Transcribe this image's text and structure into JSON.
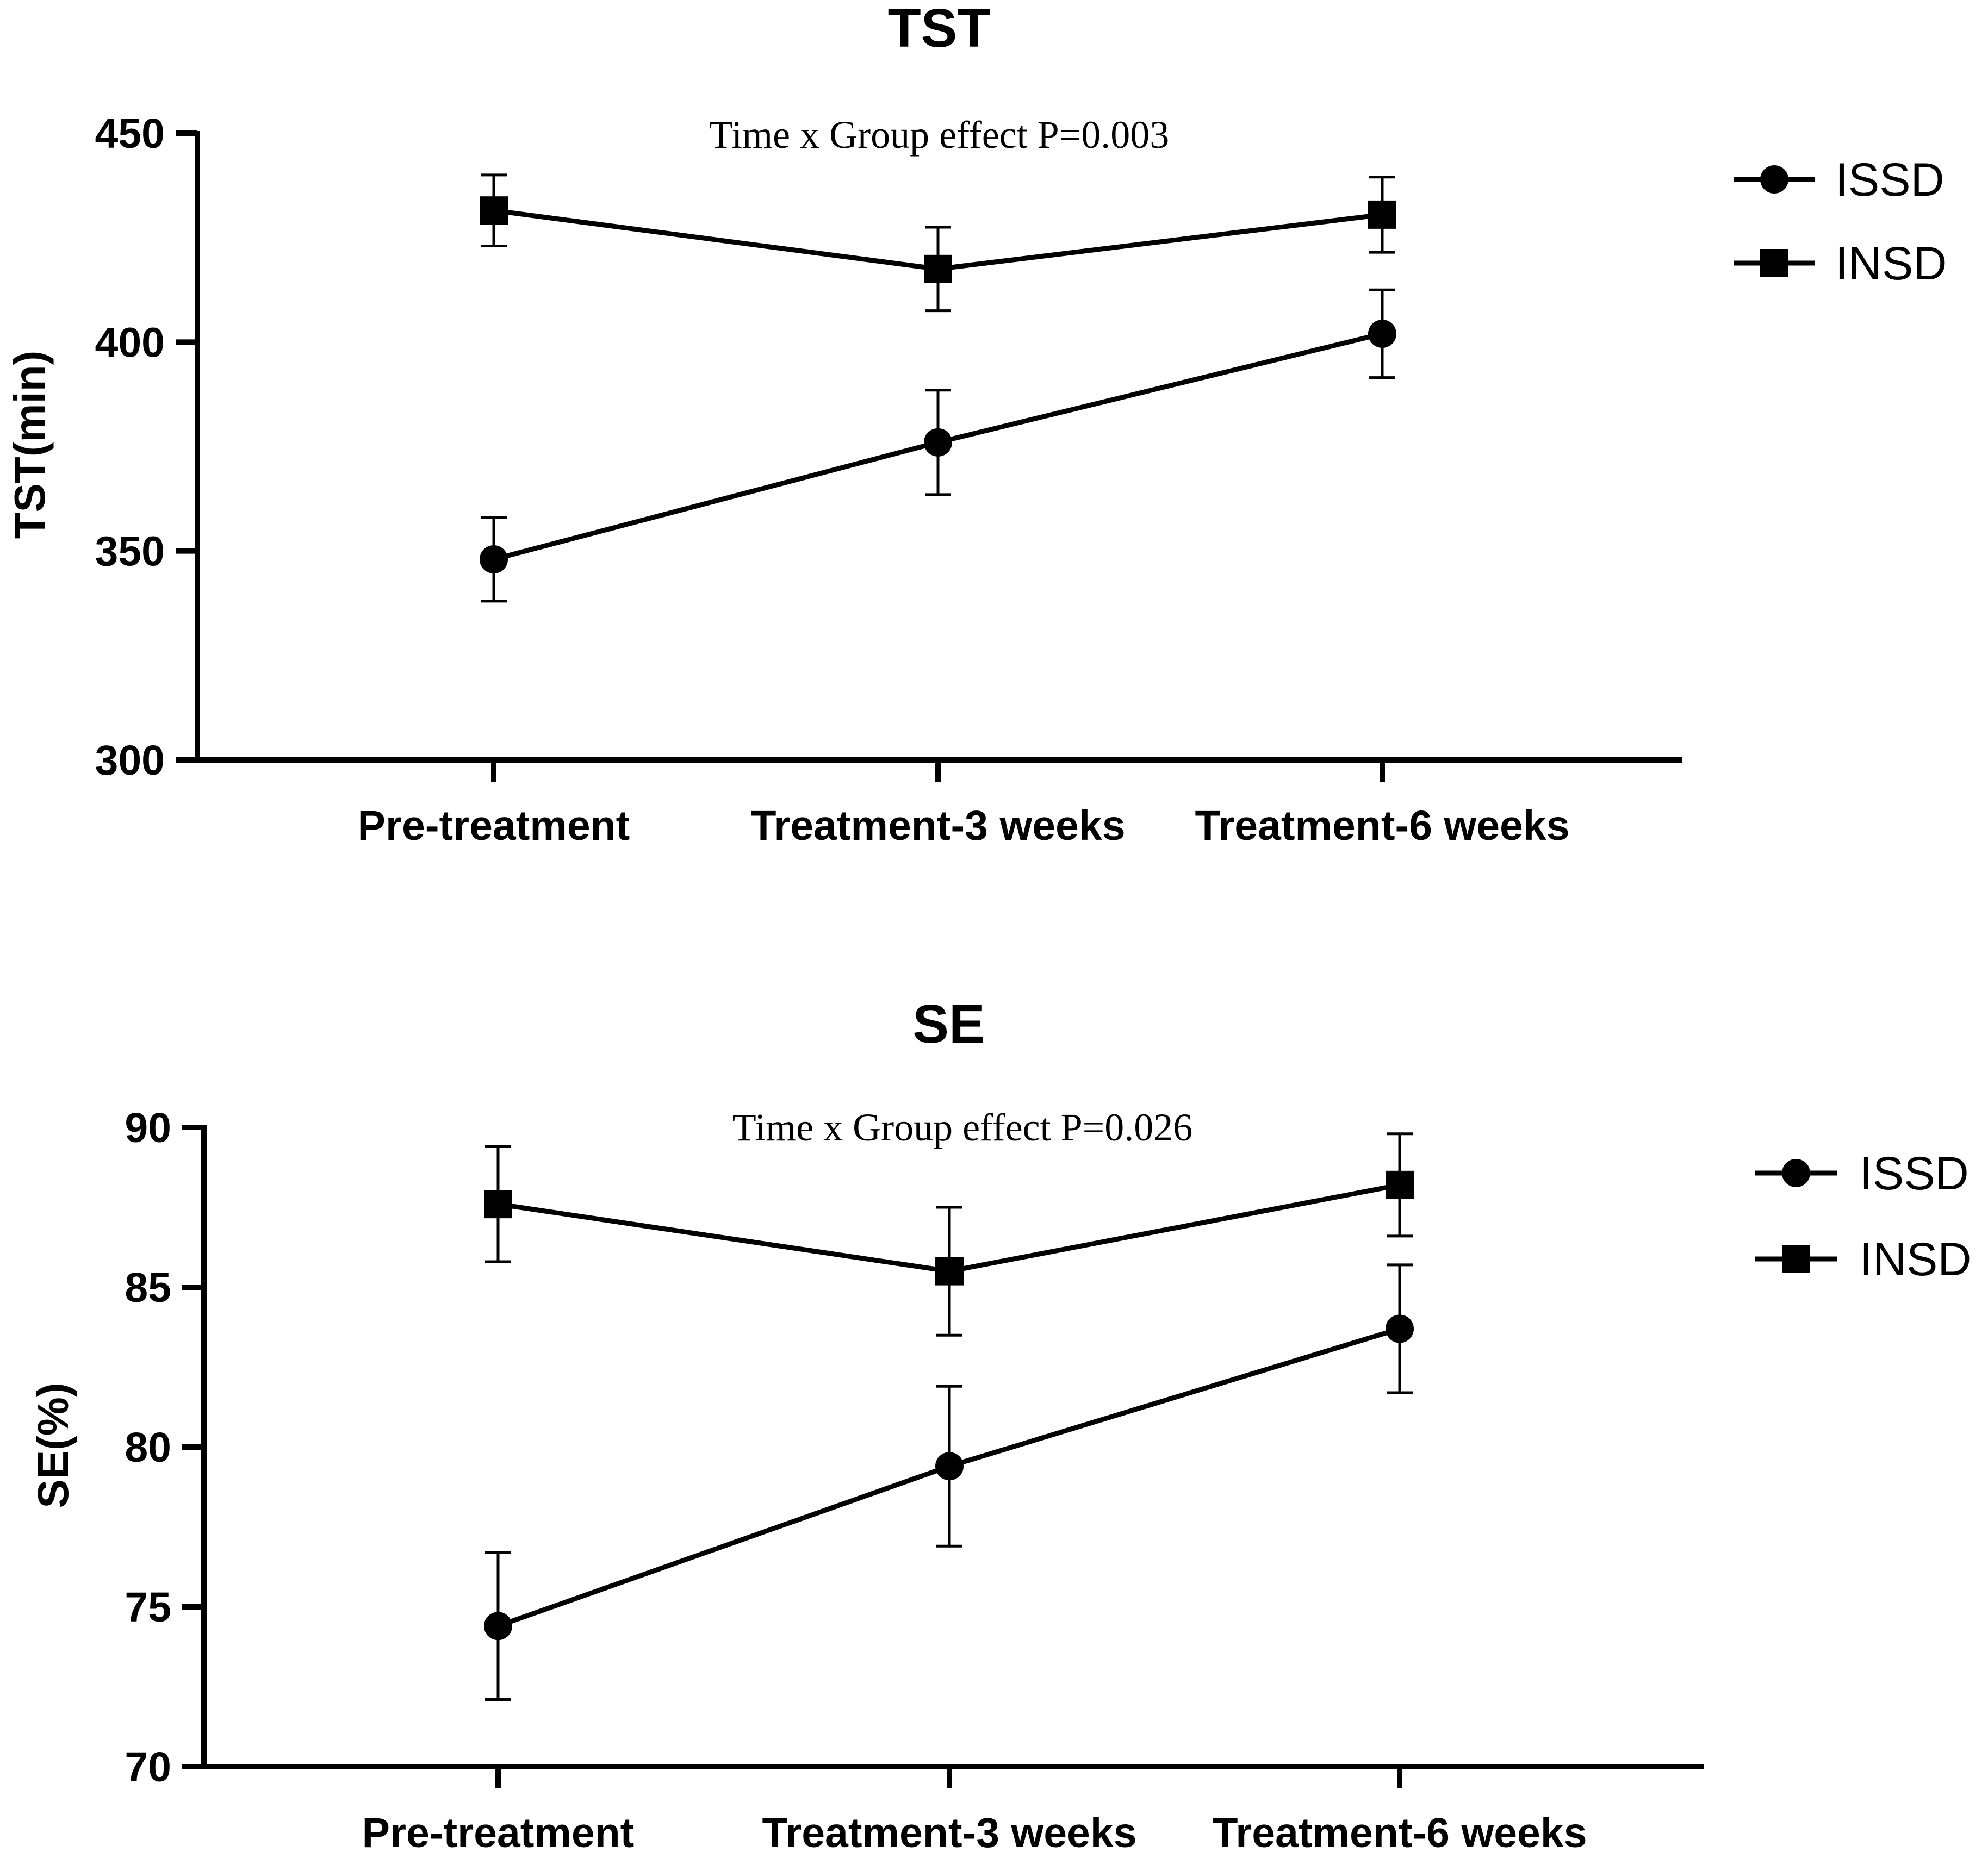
{
  "chart_data": [
    {
      "type": "line",
      "title": "TST",
      "annotation": "Time x Group effect P=0.003",
      "xlabel": "",
      "ylabel": "TST(min)",
      "categories": [
        "Pre-treatment",
        "Treatment-3 weeks",
        "Treatment-6 weeks"
      ],
      "ylim": [
        300,
        450
      ],
      "yticks": [
        300,
        350,
        400,
        450
      ],
      "series": [
        {
          "name": "ISSD",
          "marker": "circle",
          "values": [
            348,
            376,
            402
          ],
          "error": [
            10,
            12.5,
            10.5
          ]
        },
        {
          "name": "INSD",
          "marker": "square",
          "values": [
            431.5,
            417.5,
            430.5
          ],
          "error": [
            8.5,
            10,
            9
          ]
        }
      ]
    },
    {
      "type": "line",
      "title": "SE",
      "annotation": "Time x Group effect P=0.026",
      "xlabel": "",
      "ylabel": "SE(%)",
      "categories": [
        "Pre-treatment",
        "Treatment-3 weeks",
        "Treatment-6 weeks"
      ],
      "ylim": [
        70,
        90
      ],
      "yticks": [
        70,
        75,
        80,
        85,
        90
      ],
      "series": [
        {
          "name": "ISSD",
          "marker": "circle",
          "values": [
            74.4,
            79.4,
            83.7
          ],
          "error": [
            2.3,
            2.5,
            2.0
          ]
        },
        {
          "name": "INSD",
          "marker": "square",
          "values": [
            87.6,
            85.5,
            88.2
          ],
          "error": [
            1.8,
            2.0,
            1.6
          ]
        }
      ]
    }
  ]
}
